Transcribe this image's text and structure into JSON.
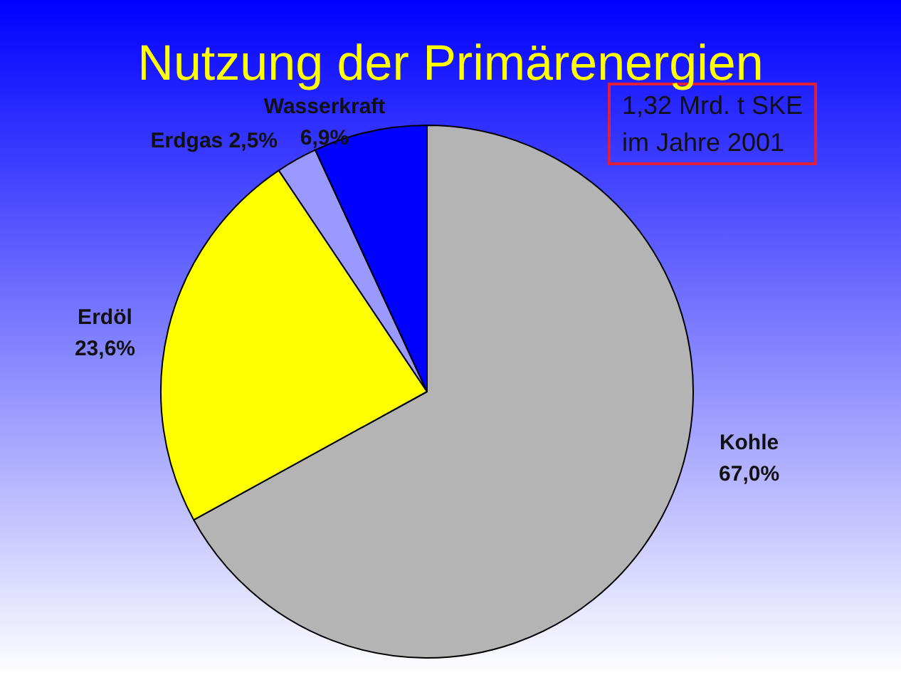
{
  "chart_data": {
    "type": "pie",
    "title": "Nutzung der Primärenergien",
    "categories": [
      "Kohle",
      "Erdöl",
      "Erdgas",
      "Wasserkraft"
    ],
    "values": [
      67.0,
      23.6,
      2.5,
      6.9
    ],
    "colors": [
      "#b4b4b4",
      "#ffff00",
      "#9999ff",
      "#0000ff"
    ],
    "value_labels": [
      "67,0%",
      "23,6%",
      "2,5%",
      "6,9%"
    ],
    "annotations": [
      "1,32 Mrd. t SKE\nim Jahre 2001"
    ]
  }
}
